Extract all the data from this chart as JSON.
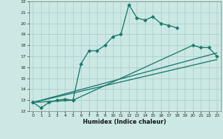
{
  "xlabel": "Humidex (Indice chaleur)",
  "background_color": "#cce8e4",
  "grid_color": "#aacfcb",
  "line_color": "#1a7a6e",
  "xlim": [
    -0.5,
    23.5
  ],
  "ylim": [
    12,
    22
  ],
  "xticks": [
    0,
    1,
    2,
    3,
    4,
    5,
    6,
    7,
    8,
    9,
    10,
    11,
    12,
    13,
    14,
    15,
    16,
    17,
    18,
    19,
    20,
    21,
    22,
    23
  ],
  "yticks": [
    12,
    13,
    14,
    15,
    16,
    17,
    18,
    19,
    20,
    21,
    22
  ],
  "series": [
    {
      "x": [
        0,
        1,
        2,
        3,
        4,
        5,
        6,
        7,
        8,
        9,
        10,
        11,
        12,
        13,
        14,
        15,
        16,
        17,
        18
      ],
      "y": [
        12.8,
        12.3,
        12.8,
        13.0,
        13.1,
        13.0,
        16.3,
        17.5,
        17.5,
        18.0,
        18.8,
        19.0,
        21.7,
        20.5,
        20.3,
        20.6,
        20.0,
        19.8,
        19.6
      ],
      "marker": "D",
      "markersize": 2.5,
      "linewidth": 1.0
    },
    {
      "x": [
        0,
        23
      ],
      "y": [
        12.8,
        16.7
      ],
      "marker": null,
      "markersize": 0,
      "linewidth": 1.0
    },
    {
      "x": [
        0,
        23
      ],
      "y": [
        12.8,
        17.3
      ],
      "marker": null,
      "markersize": 0,
      "linewidth": 1.0
    },
    {
      "x": [
        0,
        5,
        20,
        21,
        22,
        23
      ],
      "y": [
        12.8,
        13.0,
        18.0,
        17.8,
        17.8,
        17.0
      ],
      "marker": "D",
      "markersize": 2.5,
      "linewidth": 1.0
    }
  ]
}
